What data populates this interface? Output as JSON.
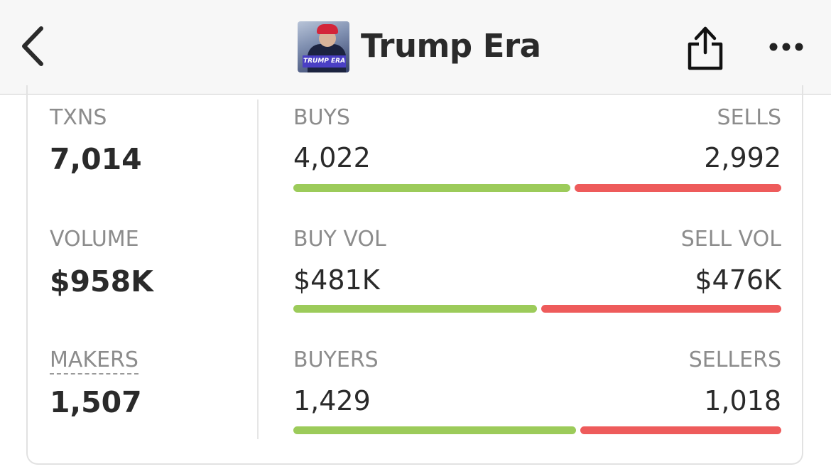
{
  "header": {
    "title": "Trump Era",
    "thumbnail_text": "TRUMP ERA",
    "icons": [
      "chevron-left-icon",
      "share-icon",
      "more-horizontal-icon"
    ]
  },
  "stats": {
    "txns": {
      "label": "TXNS",
      "value": "7,014"
    },
    "volume": {
      "label": "VOLUME",
      "value": "$958K"
    },
    "makers": {
      "label": "MAKERS",
      "value": "1,507"
    },
    "buys": {
      "label": "BUYS",
      "value": "4,022"
    },
    "sells": {
      "label": "SELLS",
      "value": "2,992"
    },
    "buy_vol": {
      "label": "BUY VOL",
      "value": "$481K"
    },
    "sell_vol": {
      "label": "SELL VOL",
      "value": "$476K"
    },
    "buyers": {
      "label": "BUYERS",
      "value": "1,429"
    },
    "sellers": {
      "label": "SELLERS",
      "value": "1,018"
    }
  },
  "ratios": {
    "buys_share": 0.573,
    "buy_vol_share": 0.503,
    "buyers_share": 0.584
  },
  "colors": {
    "buy": "#9ccb5a",
    "sell": "#ee5b5b"
  }
}
